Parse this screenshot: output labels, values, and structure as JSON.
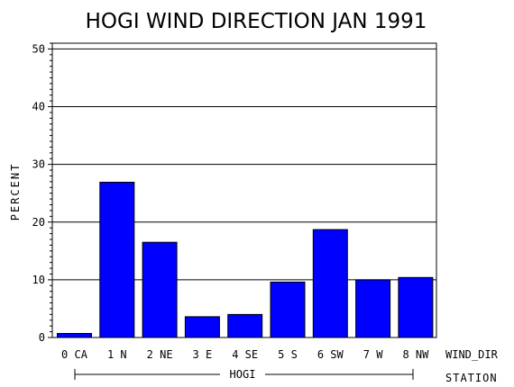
{
  "chart_data": {
    "type": "bar",
    "title": "HOGI WIND DIRECTION JAN 1991",
    "ylabel": "PERCENT",
    "xlabel": "WIND_DIR",
    "group_axis_label": "STATION",
    "group_label": "HOGI",
    "categories": [
      "0 CA",
      "1 N",
      "2 NE",
      "3 E",
      "4 SE",
      "5 S",
      "6 SW",
      "7 W",
      "8 NW"
    ],
    "values": [
      0.7,
      26.9,
      16.5,
      3.6,
      4.0,
      9.6,
      18.7,
      10.0,
      10.4
    ],
    "ylim": [
      0,
      51
    ],
    "yticks": [
      0,
      10,
      20,
      30,
      40,
      50
    ],
    "grid": true,
    "bar_color": "#0000ff"
  }
}
